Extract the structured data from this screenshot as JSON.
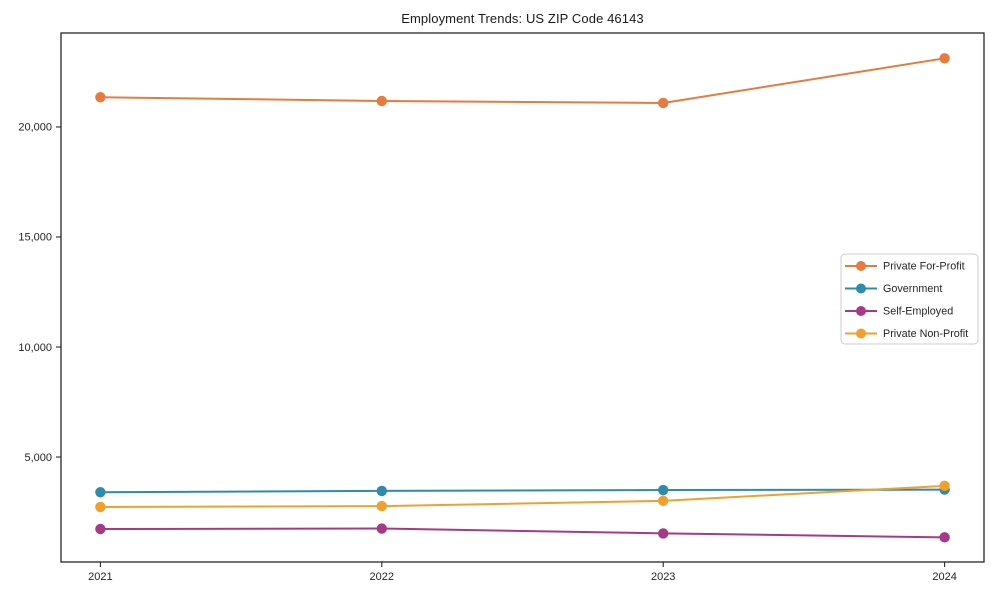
{
  "chart_data": {
    "type": "line",
    "title": "Employment Trends: US ZIP Code 46143",
    "x": [
      2021,
      2022,
      2023,
      2024
    ],
    "x_tick_labels": [
      "2021",
      "2022",
      "2023",
      "2024"
    ],
    "y_ticks": [
      {
        "value": 5000,
        "label": "5,000"
      },
      {
        "value": 10000,
        "label": "10,000"
      },
      {
        "value": 15000,
        "label": "15,000"
      },
      {
        "value": 20000,
        "label": "20,000"
      }
    ],
    "xlim": [
      2020.86,
      2024.14
    ],
    "ylim": [
      230,
      24270
    ],
    "grid": false,
    "legend_position": "center right",
    "series": [
      {
        "name": "Private For-Profit",
        "color": "#e87a3d",
        "values": [
          21350,
          21180,
          21090,
          23120
        ]
      },
      {
        "name": "Government",
        "color": "#2e8bab",
        "values": [
          3400,
          3460,
          3500,
          3520
        ]
      },
      {
        "name": "Self-Employed",
        "color": "#a63a87",
        "values": [
          1730,
          1750,
          1530,
          1350
        ]
      },
      {
        "name": "Private Non-Profit",
        "color": "#f0a02c",
        "values": [
          2730,
          2770,
          3010,
          3690
        ]
      }
    ],
    "colors": {
      "axis": "#262626",
      "legend_border": "#cccccc",
      "background": "#ffffff"
    }
  }
}
